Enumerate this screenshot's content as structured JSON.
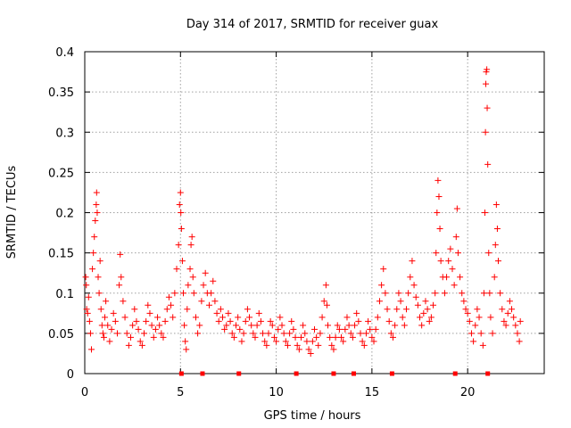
{
  "chart_data": {
    "type": "scatter",
    "title": "Day 314 of 2017, SRMTID for receiver guax",
    "xlabel": "GPS time / hours",
    "ylabel": "SRMTID / TECUs",
    "xlim": [
      0,
      24
    ],
    "ylim": [
      0,
      0.4
    ],
    "xticks": [
      0,
      5,
      10,
      15,
      20
    ],
    "xtick_labels": [
      "0",
      "5",
      "10",
      "15",
      "20"
    ],
    "yticks": [
      0,
      0.05,
      0.1,
      0.15,
      0.2,
      0.25,
      0.3,
      0.35,
      0.4
    ],
    "ytick_labels": [
      "0",
      "0.05",
      "0.1",
      "0.15",
      "0.2",
      "0.25",
      "0.3",
      "0.35",
      "0.4"
    ],
    "grid": true,
    "marker": "+",
    "color": "#ff0000",
    "series": [
      {
        "name": "SRMTID",
        "points": [
          [
            0.05,
            0.12
          ],
          [
            0.08,
            0.11
          ],
          [
            0.1,
            0.08
          ],
          [
            0.15,
            0.075
          ],
          [
            0.2,
            0.095
          ],
          [
            0.25,
            0.065
          ],
          [
            0.3,
            0.05
          ],
          [
            0.35,
            0.03
          ],
          [
            0.4,
            0.13
          ],
          [
            0.45,
            0.15
          ],
          [
            0.5,
            0.17
          ],
          [
            0.55,
            0.19
          ],
          [
            0.6,
            0.21
          ],
          [
            0.62,
            0.225
          ],
          [
            0.65,
            0.2
          ],
          [
            0.7,
            0.12
          ],
          [
            0.75,
            0.1
          ],
          [
            0.8,
            0.14
          ],
          [
            0.85,
            0.08
          ],
          [
            0.9,
            0.06
          ],
          [
            0.95,
            0.05
          ],
          [
            1.0,
            0.045
          ],
          [
            1.05,
            0.07
          ],
          [
            1.1,
            0.09
          ],
          [
            1.2,
            0.06
          ],
          [
            1.3,
            0.04
          ],
          [
            1.4,
            0.055
          ],
          [
            1.5,
            0.075
          ],
          [
            1.6,
            0.065
          ],
          [
            1.7,
            0.05
          ],
          [
            1.8,
            0.11
          ],
          [
            1.85,
            0.148
          ],
          [
            1.9,
            0.12
          ],
          [
            2.0,
            0.09
          ],
          [
            2.1,
            0.07
          ],
          [
            2.2,
            0.05
          ],
          [
            2.3,
            0.035
          ],
          [
            2.4,
            0.045
          ],
          [
            2.5,
            0.06
          ],
          [
            2.6,
            0.08
          ],
          [
            2.7,
            0.065
          ],
          [
            2.8,
            0.055
          ],
          [
            2.9,
            0.04
          ],
          [
            3.0,
            0.035
          ],
          [
            3.1,
            0.05
          ],
          [
            3.2,
            0.065
          ],
          [
            3.3,
            0.085
          ],
          [
            3.4,
            0.075
          ],
          [
            3.5,
            0.06
          ],
          [
            3.6,
            0.045
          ],
          [
            3.7,
            0.055
          ],
          [
            3.8,
            0.07
          ],
          [
            3.9,
            0.06
          ],
          [
            4.0,
            0.05
          ],
          [
            4.1,
            0.045
          ],
          [
            4.2,
            0.065
          ],
          [
            4.3,
            0.08
          ],
          [
            4.4,
            0.095
          ],
          [
            4.5,
            0.085
          ],
          [
            4.6,
            0.07
          ],
          [
            4.7,
            0.1
          ],
          [
            4.8,
            0.13
          ],
          [
            4.9,
            0.16
          ],
          [
            4.95,
            0.21
          ],
          [
            5.0,
            0.225
          ],
          [
            5.02,
            0.2
          ],
          [
            5.05,
            0.18
          ],
          [
            5.1,
            0.14
          ],
          [
            5.15,
            0.1
          ],
          [
            5.2,
            0.06
          ],
          [
            5.25,
            0.04
          ],
          [
            5.3,
            0.03
          ],
          [
            5.35,
            0.08
          ],
          [
            5.4,
            0.11
          ],
          [
            5.5,
            0.13
          ],
          [
            5.55,
            0.16
          ],
          [
            5.6,
            0.17
          ],
          [
            5.65,
            0.12
          ],
          [
            5.7,
            0.1
          ],
          [
            5.8,
            0.07
          ],
          [
            5.9,
            0.05
          ],
          [
            6.0,
            0.06
          ],
          [
            6.1,
            0.09
          ],
          [
            6.2,
            0.11
          ],
          [
            6.3,
            0.125
          ],
          [
            6.4,
            0.1
          ],
          [
            6.5,
            0.085
          ],
          [
            6.6,
            0.1
          ],
          [
            6.7,
            0.115
          ],
          [
            6.8,
            0.09
          ],
          [
            6.9,
            0.075
          ],
          [
            7.0,
            0.065
          ],
          [
            7.1,
            0.08
          ],
          [
            7.2,
            0.07
          ],
          [
            7.3,
            0.055
          ],
          [
            7.4,
            0.06
          ],
          [
            7.5,
            0.075
          ],
          [
            7.6,
            0.065
          ],
          [
            7.7,
            0.05
          ],
          [
            7.8,
            0.045
          ],
          [
            7.9,
            0.06
          ],
          [
            8.0,
            0.07
          ],
          [
            8.1,
            0.055
          ],
          [
            8.2,
            0.04
          ],
          [
            8.3,
            0.05
          ],
          [
            8.4,
            0.065
          ],
          [
            8.5,
            0.08
          ],
          [
            8.6,
            0.07
          ],
          [
            8.7,
            0.06
          ],
          [
            8.8,
            0.05
          ],
          [
            8.9,
            0.045
          ],
          [
            9.0,
            0.06
          ],
          [
            9.1,
            0.075
          ],
          [
            9.2,
            0.065
          ],
          [
            9.3,
            0.05
          ],
          [
            9.4,
            0.04
          ],
          [
            9.5,
            0.035
          ],
          [
            9.6,
            0.05
          ],
          [
            9.7,
            0.065
          ],
          [
            9.8,
            0.06
          ],
          [
            9.9,
            0.045
          ],
          [
            10.0,
            0.04
          ],
          [
            10.1,
            0.055
          ],
          [
            10.2,
            0.07
          ],
          [
            10.3,
            0.06
          ],
          [
            10.4,
            0.05
          ],
          [
            10.5,
            0.04
          ],
          [
            10.6,
            0.035
          ],
          [
            10.7,
            0.05
          ],
          [
            10.8,
            0.065
          ],
          [
            10.9,
            0.055
          ],
          [
            11.0,
            0.045
          ],
          [
            11.1,
            0.035
          ],
          [
            11.2,
            0.03
          ],
          [
            11.3,
            0.045
          ],
          [
            11.4,
            0.06
          ],
          [
            11.5,
            0.05
          ],
          [
            11.6,
            0.04
          ],
          [
            11.7,
            0.03
          ],
          [
            11.8,
            0.025
          ],
          [
            11.9,
            0.04
          ],
          [
            12.0,
            0.055
          ],
          [
            12.1,
            0.045
          ],
          [
            12.2,
            0.035
          ],
          [
            12.3,
            0.05
          ],
          [
            12.4,
            0.07
          ],
          [
            12.5,
            0.09
          ],
          [
            12.6,
            0.11
          ],
          [
            12.65,
            0.085
          ],
          [
            12.7,
            0.06
          ],
          [
            12.8,
            0.045
          ],
          [
            12.9,
            0.035
          ],
          [
            13.0,
            0.03
          ],
          [
            13.1,
            0.045
          ],
          [
            13.2,
            0.06
          ],
          [
            13.3,
            0.055
          ],
          [
            13.4,
            0.045
          ],
          [
            13.5,
            0.04
          ],
          [
            13.6,
            0.055
          ],
          [
            13.7,
            0.07
          ],
          [
            13.8,
            0.06
          ],
          [
            13.9,
            0.05
          ],
          [
            14.0,
            0.045
          ],
          [
            14.1,
            0.06
          ],
          [
            14.2,
            0.075
          ],
          [
            14.3,
            0.065
          ],
          [
            14.4,
            0.05
          ],
          [
            14.5,
            0.04
          ],
          [
            14.6,
            0.035
          ],
          [
            14.7,
            0.05
          ],
          [
            14.8,
            0.065
          ],
          [
            14.9,
            0.055
          ],
          [
            15.0,
            0.045
          ],
          [
            15.1,
            0.04
          ],
          [
            15.2,
            0.055
          ],
          [
            15.3,
            0.07
          ],
          [
            15.4,
            0.09
          ],
          [
            15.5,
            0.11
          ],
          [
            15.6,
            0.13
          ],
          [
            15.7,
            0.1
          ],
          [
            15.8,
            0.08
          ],
          [
            15.9,
            0.065
          ],
          [
            16.0,
            0.05
          ],
          [
            16.1,
            0.045
          ],
          [
            16.2,
            0.06
          ],
          [
            16.3,
            0.08
          ],
          [
            16.4,
            0.1
          ],
          [
            16.5,
            0.09
          ],
          [
            16.6,
            0.07
          ],
          [
            16.7,
            0.06
          ],
          [
            16.8,
            0.08
          ],
          [
            16.9,
            0.1
          ],
          [
            17.0,
            0.12
          ],
          [
            17.1,
            0.14
          ],
          [
            17.2,
            0.11
          ],
          [
            17.3,
            0.095
          ],
          [
            17.4,
            0.085
          ],
          [
            17.5,
            0.07
          ],
          [
            17.6,
            0.06
          ],
          [
            17.7,
            0.075
          ],
          [
            17.8,
            0.09
          ],
          [
            17.9,
            0.08
          ],
          [
            18.0,
            0.065
          ],
          [
            18.1,
            0.07
          ],
          [
            18.2,
            0.085
          ],
          [
            18.3,
            0.1
          ],
          [
            18.35,
            0.15
          ],
          [
            18.4,
            0.2
          ],
          [
            18.45,
            0.24
          ],
          [
            18.5,
            0.22
          ],
          [
            18.55,
            0.18
          ],
          [
            18.6,
            0.14
          ],
          [
            18.7,
            0.12
          ],
          [
            18.8,
            0.1
          ],
          [
            18.9,
            0.12
          ],
          [
            19.0,
            0.14
          ],
          [
            19.1,
            0.155
          ],
          [
            19.2,
            0.13
          ],
          [
            19.3,
            0.11
          ],
          [
            19.4,
            0.17
          ],
          [
            19.45,
            0.205
          ],
          [
            19.5,
            0.15
          ],
          [
            19.6,
            0.12
          ],
          [
            19.7,
            0.1
          ],
          [
            19.8,
            0.09
          ],
          [
            19.9,
            0.08
          ],
          [
            20.0,
            0.075
          ],
          [
            20.1,
            0.065
          ],
          [
            20.2,
            0.05
          ],
          [
            20.3,
            0.04
          ],
          [
            20.4,
            0.06
          ],
          [
            20.5,
            0.08
          ],
          [
            20.6,
            0.07
          ],
          [
            20.7,
            0.05
          ],
          [
            20.8,
            0.035
          ],
          [
            20.85,
            0.1
          ],
          [
            20.9,
            0.2
          ],
          [
            20.93,
            0.3
          ],
          [
            20.95,
            0.36
          ],
          [
            20.97,
            0.375
          ],
          [
            21.0,
            0.378
          ],
          [
            21.02,
            0.33
          ],
          [
            21.05,
            0.26
          ],
          [
            21.1,
            0.15
          ],
          [
            21.15,
            0.1
          ],
          [
            21.2,
            0.07
          ],
          [
            21.3,
            0.05
          ],
          [
            21.4,
            0.12
          ],
          [
            21.45,
            0.16
          ],
          [
            21.5,
            0.21
          ],
          [
            21.55,
            0.18
          ],
          [
            21.6,
            0.14
          ],
          [
            21.7,
            0.1
          ],
          [
            21.8,
            0.08
          ],
          [
            21.9,
            0.065
          ],
          [
            22.0,
            0.06
          ],
          [
            22.1,
            0.075
          ],
          [
            22.2,
            0.09
          ],
          [
            22.3,
            0.08
          ],
          [
            22.4,
            0.07
          ],
          [
            22.5,
            0.06
          ],
          [
            22.6,
            0.05
          ],
          [
            22.7,
            0.04
          ],
          [
            22.75,
            0.065
          ]
        ]
      }
    ],
    "axis_markers_x": [
      5.05,
      6.15,
      8.05,
      11.05,
      13.0,
      14.05,
      16.05,
      19.35,
      21.05
    ]
  }
}
